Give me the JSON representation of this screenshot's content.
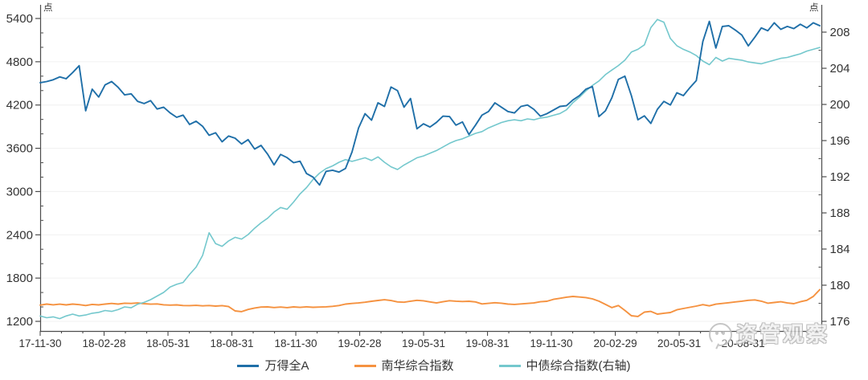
{
  "watermark": {
    "text": "资管观察",
    "icon": "wechat-chat-bubble-icon"
  },
  "chart_data": {
    "type": "line",
    "title": "",
    "grid": "horizontal, at left-axis major ticks, very light",
    "legend_position": "bottom-center",
    "left_axis": {
      "unit": "点",
      "min": 1200,
      "max": 5400,
      "major_step": 600,
      "minor_step": 200,
      "ticks": [
        5400,
        4800,
        4200,
        3600,
        3000,
        2400,
        1800,
        1200
      ]
    },
    "right_axis": {
      "unit": "点",
      "min": 176,
      "max": 208,
      "major_step": 4,
      "minor_step": 2,
      "ticks": [
        208,
        204,
        200,
        196,
        192,
        188,
        184,
        180,
        176
      ]
    },
    "x_axis": {
      "tick_labels": [
        "17-11-30",
        "18-02-28",
        "18-05-31",
        "18-08-31",
        "18-11-30",
        "19-02-28",
        "19-05-31",
        "19-08-31",
        "19-11-30",
        "20-02-29",
        "20-05-31",
        "20-08-31"
      ],
      "label_interval_months": 3,
      "minor_tick_interval_months": 1,
      "total_months_shown": 36.6
    },
    "series": [
      {
        "name": "万得全A",
        "axis": "left",
        "color": "#1f6fa8",
        "values": [
          4510,
          4525,
          4550,
          4590,
          4565,
          4650,
          4745,
          4120,
          4420,
          4310,
          4480,
          4525,
          4445,
          4340,
          4355,
          4250,
          4220,
          4260,
          4145,
          4170,
          4090,
          4030,
          4060,
          3930,
          3975,
          3905,
          3780,
          3815,
          3690,
          3770,
          3740,
          3660,
          3720,
          3590,
          3640,
          3520,
          3370,
          3515,
          3470,
          3400,
          3420,
          3250,
          3200,
          3090,
          3280,
          3295,
          3270,
          3320,
          3550,
          3880,
          4080,
          3990,
          4230,
          4180,
          4450,
          4400,
          4170,
          4290,
          3870,
          3940,
          3895,
          3960,
          4045,
          4040,
          3920,
          3965,
          3790,
          3920,
          4060,
          4110,
          4230,
          4170,
          4110,
          4090,
          4180,
          4200,
          4140,
          4045,
          4080,
          4130,
          4180,
          4190,
          4270,
          4330,
          4420,
          4455,
          4040,
          4120,
          4300,
          4555,
          4600,
          4330,
          3995,
          4050,
          3945,
          4140,
          4250,
          4200,
          4370,
          4330,
          4440,
          4540,
          5080,
          5360,
          4990,
          5290,
          5300,
          5240,
          5170,
          5020,
          5140,
          5270,
          5230,
          5340,
          5250,
          5290,
          5260,
          5320,
          5270,
          5340,
          5300
        ]
      },
      {
        "name": "南华综合指数",
        "axis": "left",
        "color": "#f59240",
        "values": [
          1425,
          1440,
          1430,
          1438,
          1428,
          1440,
          1432,
          1420,
          1435,
          1428,
          1440,
          1448,
          1440,
          1452,
          1448,
          1455,
          1445,
          1438,
          1442,
          1430,
          1425,
          1428,
          1420,
          1418,
          1422,
          1415,
          1420,
          1412,
          1418,
          1405,
          1345,
          1335,
          1365,
          1385,
          1398,
          1400,
          1392,
          1398,
          1390,
          1400,
          1394,
          1402,
          1395,
          1398,
          1402,
          1408,
          1420,
          1440,
          1448,
          1455,
          1465,
          1478,
          1490,
          1500,
          1488,
          1470,
          1465,
          1480,
          1492,
          1485,
          1470,
          1455,
          1472,
          1486,
          1480,
          1475,
          1478,
          1470,
          1442,
          1450,
          1458,
          1452,
          1440,
          1435,
          1442,
          1448,
          1455,
          1472,
          1478,
          1505,
          1520,
          1535,
          1545,
          1538,
          1530,
          1512,
          1480,
          1435,
          1390,
          1420,
          1352,
          1278,
          1268,
          1328,
          1338,
          1300,
          1312,
          1322,
          1360,
          1378,
          1395,
          1412,
          1432,
          1415,
          1438,
          1448,
          1458,
          1470,
          1480,
          1492,
          1497,
          1480,
          1452,
          1462,
          1472,
          1455,
          1445,
          1472,
          1492,
          1545,
          1640
        ]
      },
      {
        "name": "中债综合指数(右轴)",
        "axis": "right",
        "color": "#74c8cd",
        "values": [
          176.6,
          176.4,
          176.5,
          176.3,
          176.6,
          176.8,
          176.6,
          176.7,
          176.9,
          177.0,
          177.2,
          177.1,
          177.3,
          177.6,
          177.5,
          177.9,
          178.1,
          178.4,
          178.8,
          179.2,
          179.8,
          180.1,
          180.3,
          181.2,
          182.0,
          183.3,
          185.8,
          184.6,
          184.3,
          184.9,
          185.3,
          185.1,
          185.6,
          186.3,
          186.9,
          187.4,
          188.1,
          188.6,
          188.4,
          189.2,
          190.1,
          190.8,
          191.7,
          192.4,
          192.9,
          193.2,
          193.6,
          193.9,
          193.7,
          193.9,
          194.1,
          193.8,
          194.2,
          193.6,
          193.1,
          192.8,
          193.3,
          193.7,
          194.1,
          194.3,
          194.6,
          194.9,
          195.3,
          195.7,
          196.0,
          196.2,
          196.5,
          196.8,
          197.0,
          197.4,
          197.7,
          198.0,
          198.2,
          198.3,
          198.2,
          198.4,
          198.3,
          198.5,
          198.6,
          198.8,
          199.0,
          199.4,
          200.2,
          200.8,
          201.5,
          202.1,
          202.6,
          203.3,
          203.8,
          204.3,
          204.9,
          205.8,
          206.1,
          206.6,
          208.5,
          209.4,
          209.1,
          207.3,
          206.5,
          206.1,
          205.8,
          205.4,
          204.8,
          204.4,
          205.2,
          204.8,
          205.1,
          205.0,
          204.9,
          204.7,
          204.6,
          204.5,
          204.7,
          204.9,
          205.1,
          205.2,
          205.4,
          205.6,
          205.9,
          206.1,
          206.3
        ]
      }
    ]
  }
}
